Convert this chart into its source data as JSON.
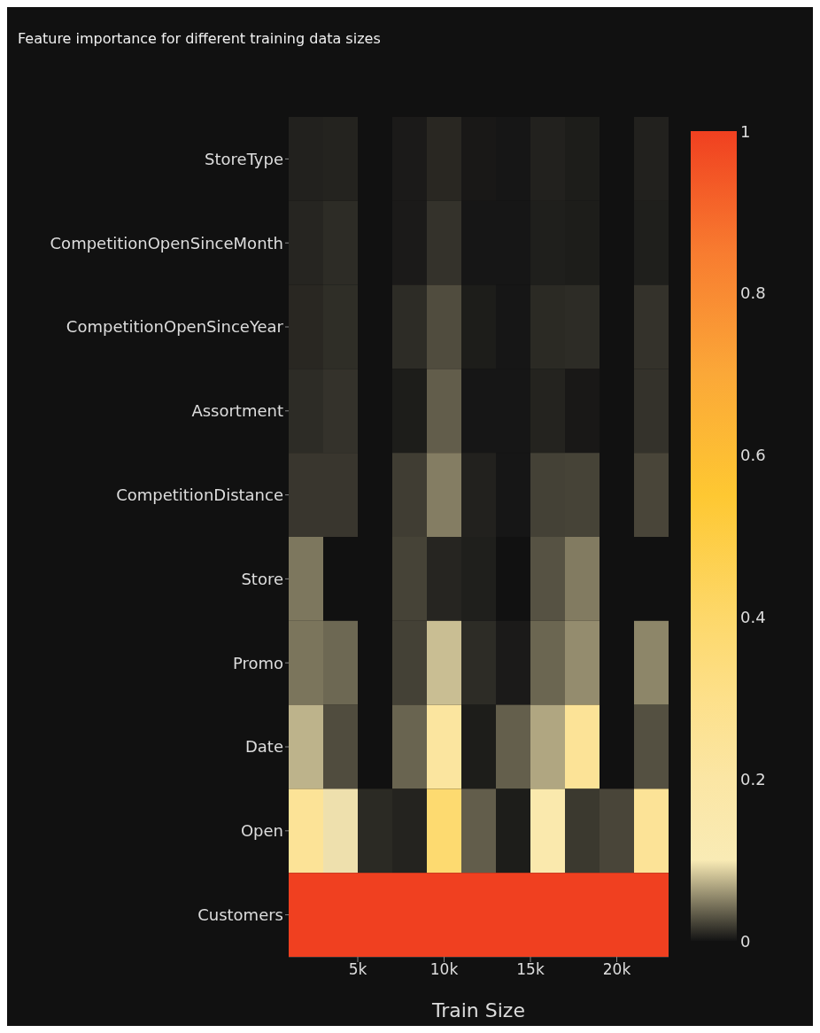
{
  "chart_data": {
    "type": "heatmap",
    "title": "Feature importance for different training data sizes",
    "xlabel": "Train Size",
    "x": [
      2000,
      4000,
      6000,
      8000,
      10000,
      12000,
      14000,
      16000,
      18000,
      20000,
      22000
    ],
    "xlim": [
      1000,
      23000
    ],
    "xticks": [
      {
        "value": 5000,
        "label": "5k"
      },
      {
        "value": 10000,
        "label": "10k"
      },
      {
        "value": 15000,
        "label": "15k"
      },
      {
        "value": 20000,
        "label": "20k"
      }
    ],
    "y_categories": [
      "StoreType",
      "CompetitionOpenSinceMonth",
      "CompetitionOpenSinceYear",
      "Assortment",
      "CompetitionDistance",
      "Store",
      "Promo",
      "Date",
      "Open",
      "Customers"
    ],
    "cells": [
      [
        0.006,
        0.007,
        null,
        0.003,
        0.009,
        0.002,
        0.001,
        0.006,
        0.004,
        null,
        0.006
      ],
      [
        0.008,
        0.011,
        null,
        0.003,
        0.014,
        0.001,
        0.001,
        0.005,
        0.004,
        null,
        0.005
      ],
      [
        0.009,
        0.012,
        null,
        0.011,
        0.026,
        0.004,
        0.001,
        0.01,
        0.011,
        null,
        0.014
      ],
      [
        0.011,
        0.014,
        null,
        0.004,
        0.034,
        0.001,
        0.001,
        0.007,
        0.002,
        null,
        0.014
      ],
      [
        0.016,
        0.016,
        null,
        0.019,
        0.049,
        0.006,
        0.001,
        0.021,
        0.022,
        null,
        0.023
      ],
      [
        0.046,
        null,
        null,
        0.022,
        0.008,
        0.005,
        null,
        0.029,
        0.048,
        null,
        null
      ],
      [
        0.045,
        0.039,
        null,
        0.021,
        0.079,
        0.011,
        0.003,
        0.038,
        0.056,
        null,
        0.053
      ],
      [
        0.074,
        0.026,
        null,
        0.037,
        0.22,
        0.004,
        0.035,
        0.068,
        0.25,
        null,
        0.028
      ],
      [
        0.25,
        0.095,
        0.01,
        0.007,
        0.38,
        0.034,
        0.004,
        0.15,
        0.017,
        0.023,
        0.25
      ],
      [
        1,
        1,
        1,
        1,
        1,
        1,
        1,
        1,
        1,
        1,
        1
      ]
    ],
    "clim": [
      0,
      1
    ],
    "cticks": [
      0,
      0.2,
      0.4,
      0.6,
      0.8,
      1
    ]
  }
}
